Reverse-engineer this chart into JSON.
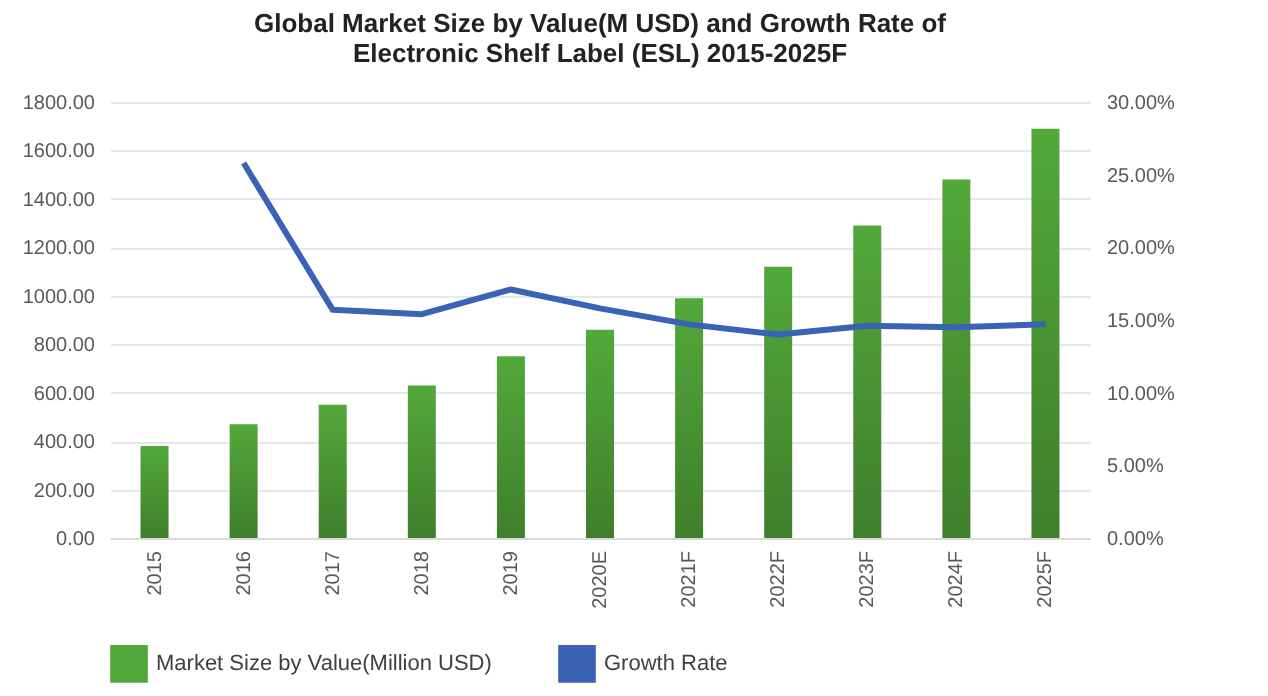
{
  "chart_data": {
    "type": "bar",
    "title": "Global Market Size by Value(M USD) and Growth Rate of Electronic Shelf Label (ESL) 2015-2025F",
    "categories": [
      "2015",
      "2016",
      "2017",
      "2018",
      "2019",
      "2020E",
      "2021F",
      "2022F",
      "2023F",
      "2024F",
      "2025F"
    ],
    "series": [
      {
        "name": "Market Size by Value(Million USD)",
        "color": "#52a83a",
        "values": [
          380,
          470,
          550,
          630,
          750,
          860,
          990,
          1120,
          1290,
          1480,
          1690
        ]
      },
      {
        "name": "Growth Rate",
        "type": "line",
        "axis": "y2",
        "color": "#3a62b5",
        "values": [
          null,
          25.8,
          15.7,
          15.4,
          17.1,
          15.8,
          14.7,
          14.0,
          14.6,
          14.5,
          14.7
        ]
      }
    ],
    "ylim": [
      0,
      1800
    ],
    "yticks": [
      {
        "value": 0,
        "label": "0.00"
      },
      {
        "value": 200,
        "label": "200.00"
      },
      {
        "value": 400,
        "label": "400.00"
      },
      {
        "value": 600,
        "label": "600.00"
      },
      {
        "value": 800,
        "label": "800.00"
      },
      {
        "value": 1000,
        "label": "1000.00"
      },
      {
        "value": 1200,
        "label": "1200.00"
      },
      {
        "value": 1400,
        "label": "1400.00"
      },
      {
        "value": 1600,
        "label": "1600.00"
      },
      {
        "value": 1800,
        "label": "1800.00"
      }
    ],
    "y2lim": [
      0,
      30
    ],
    "y2ticks": [
      {
        "value": 0,
        "label": "0.00%"
      },
      {
        "value": 5,
        "label": "5.00%"
      },
      {
        "value": 10,
        "label": "10.00%"
      },
      {
        "value": 15,
        "label": "15.00%"
      },
      {
        "value": 20,
        "label": "20.00%"
      },
      {
        "value": 25,
        "label": "25.00%"
      },
      {
        "value": 30,
        "label": "30.00%"
      }
    ],
    "grid": "y",
    "legend": "bottom",
    "marker": "none",
    "line_style": "solid"
  }
}
